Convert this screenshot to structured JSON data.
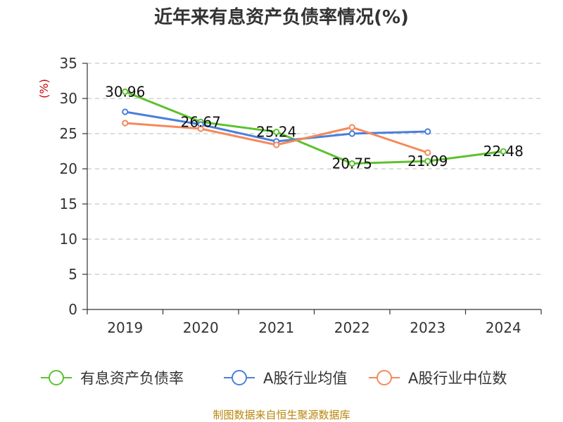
{
  "chart_data": {
    "type": "line",
    "title": "近年来有息资产负债率情况(%)",
    "ylabel": "(%)",
    "xlabel": "",
    "categories": [
      "2019",
      "2020",
      "2021",
      "2022",
      "2023",
      "2024"
    ],
    "ylim": [
      0,
      35
    ],
    "yticks": [
      0,
      5,
      10,
      15,
      20,
      25,
      30,
      35
    ],
    "grid": true,
    "legend_position": "bottom",
    "series": [
      {
        "name": "有息资产负债率",
        "color": "#5cc22d",
        "values": [
          30.96,
          26.67,
          25.24,
          20.75,
          21.09,
          22.48
        ],
        "labels": [
          "30.96",
          "26.67",
          "25.24",
          "20.75",
          "21.09",
          "22.48"
        ]
      },
      {
        "name": "A股行业均值",
        "color": "#4a7fdc",
        "values": [
          28.1,
          26.3,
          23.9,
          25.0,
          25.3,
          null
        ]
      },
      {
        "name": "A股行业中位数",
        "color": "#f5895a",
        "values": [
          26.5,
          25.7,
          23.4,
          25.9,
          22.3,
          null
        ]
      }
    ],
    "source": "制图数据来自恒生聚源数据库"
  }
}
